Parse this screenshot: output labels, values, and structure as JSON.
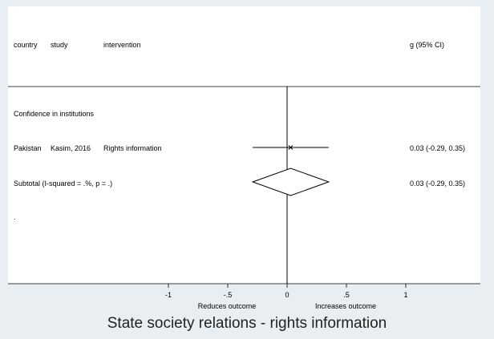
{
  "chart_data": {
    "type": "forest",
    "title": "State society relations - rights information",
    "columns": {
      "country": "country",
      "study": "study",
      "intervention": "intervention",
      "effect": "g (95% CI)"
    },
    "groups": [
      {
        "name": "Confidence in institutions",
        "studies": [
          {
            "country": "Pakistan",
            "study": "Kasim, 2016",
            "intervention": "Rights information",
            "g": 0.03,
            "ci_low": -0.29,
            "ci_high": 0.35,
            "label": "0.03 (-0.29, 0.35)"
          }
        ],
        "subtotal": {
          "label": "Subtotal  (I-squared = .%, p = .)",
          "g": 0.03,
          "ci_low": -0.29,
          "ci_high": 0.35,
          "value_label": "0.03 (-0.29, 0.35)"
        }
      }
    ],
    "trailing_mark": ".",
    "x_ticks": [
      -1,
      -0.5,
      0,
      0.5,
      1
    ],
    "x_tick_labels": [
      "-1",
      "-.5",
      "0",
      ".5",
      "1"
    ],
    "xlim": [
      -1,
      1
    ],
    "left_note": "Reduces outcome",
    "right_note": "Increases outcome"
  }
}
